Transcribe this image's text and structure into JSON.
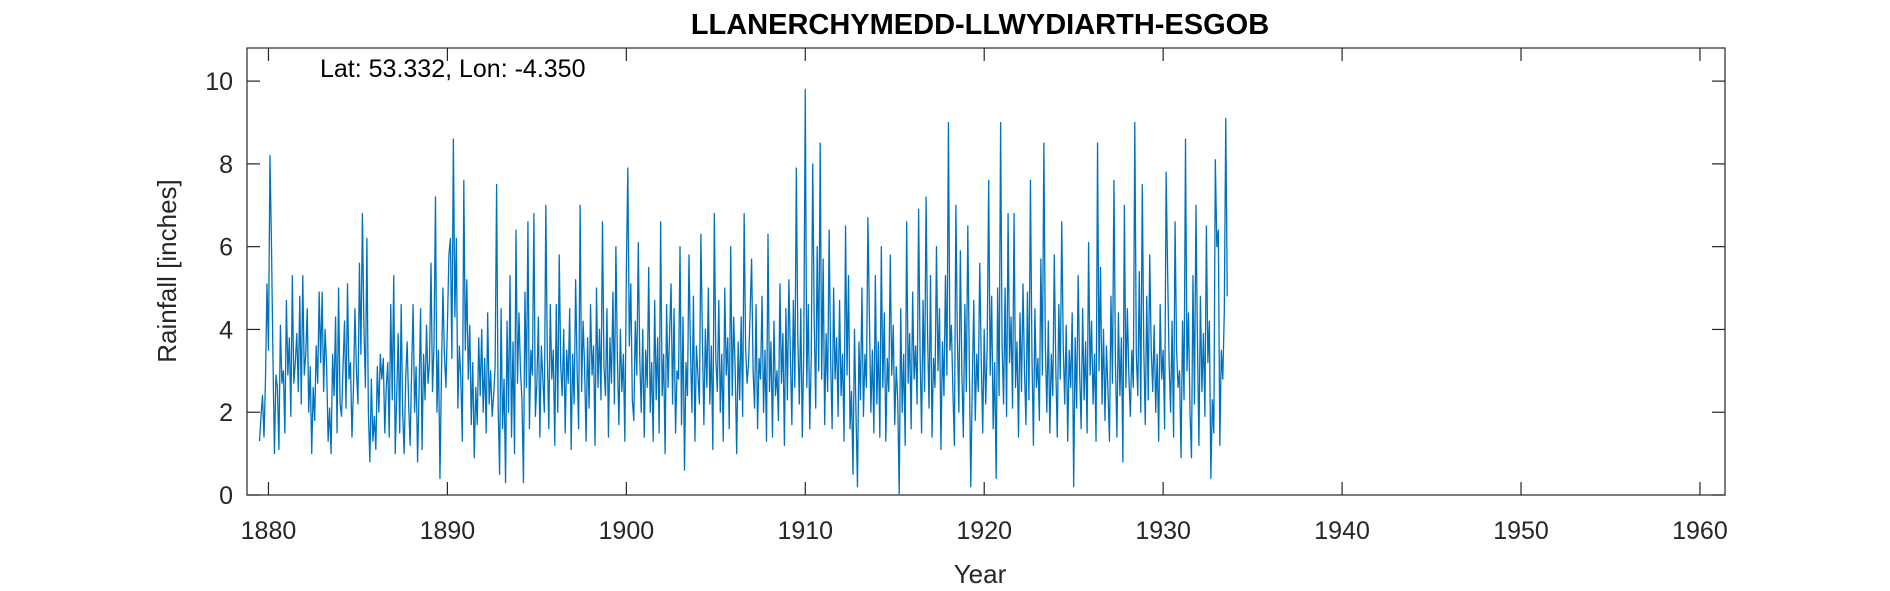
{
  "chart_data": {
    "type": "line",
    "title": "LLANERCHYMEDD-LLWYDIARTH-ESGOB",
    "annotation": "Lat: 53.332, Lon: -4.350",
    "xlabel": "Year",
    "ylabel": "Rainfall [inches]",
    "xlim": [
      1878.8,
      1961.4
    ],
    "ylim": [
      0,
      10.8
    ],
    "x_ticks": [
      1880,
      1890,
      1900,
      1910,
      1920,
      1930,
      1940,
      1950,
      1960
    ],
    "y_ticks": [
      0,
      2,
      4,
      6,
      8,
      10
    ],
    "line_color": "#0072BD",
    "x_start": 1879.5,
    "step": 0.0833333,
    "series": [
      {
        "values": [
          1.3,
          1.9,
          2.4,
          1.4,
          2.8,
          5.1,
          3.5,
          8.2,
          6.1,
          3.3,
          1.0,
          2.9,
          2.6,
          1.1,
          4.1,
          2.7,
          3.0,
          1.5,
          4.7,
          2.9,
          3.8,
          1.9,
          5.3,
          2.7,
          3.2,
          3.9,
          2.5,
          4.8,
          2.2,
          5.3,
          2.9,
          3.4,
          4.5,
          2.0,
          3.1,
          1.0,
          2.6,
          1.8,
          3.6,
          2.7,
          4.9,
          3.2,
          4.9,
          2.5,
          4.0,
          3.1,
          1.3,
          2.1,
          1.0,
          3.4,
          2.4,
          4.3,
          1.5,
          5.0,
          2.2,
          1.9,
          3.1,
          4.2,
          2.1,
          5.1,
          2.8,
          3.2,
          1.4,
          2.6,
          4.5,
          3.0,
          2.2,
          5.6,
          3.4,
          6.8,
          4.1,
          2.6,
          6.2,
          2.0,
          0.8,
          2.8,
          1.3,
          1.9,
          1.1,
          3.1,
          2.0,
          3.4,
          2.8,
          3.3,
          1.5,
          2.6,
          3.2,
          1.4,
          4.6,
          2.3,
          5.3,
          1.0,
          2.4,
          3.9,
          1.5,
          4.6,
          2.0,
          1.0,
          2.8,
          3.7,
          2.2,
          1.2,
          3.0,
          4.6,
          2.0,
          3.1,
          0.8,
          2.5,
          4.5,
          1.1,
          3.4,
          2.3,
          4.1,
          2.7,
          3.2,
          5.6,
          2.5,
          3.6,
          7.2,
          2.0,
          3.5,
          0.4,
          2.9,
          5.0,
          3.4,
          2.6,
          4.1,
          5.8,
          6.2,
          3.3,
          8.6,
          4.3,
          6.2,
          2.1,
          3.6,
          2.8,
          1.3,
          7.6,
          3.5,
          5.2,
          2.8,
          4.1,
          1.7,
          3.2,
          0.9,
          2.6,
          1.7,
          3.8,
          2.4,
          4.0,
          2.0,
          3.3,
          1.5,
          4.4,
          2.2,
          3.0,
          1.9,
          2.4,
          3.1,
          7.5,
          2.2,
          0.5,
          4.5,
          1.6,
          2.8,
          0.3,
          4.2,
          2.0,
          5.3,
          1.4,
          3.7,
          1.0,
          6.4,
          2.7,
          4.4,
          3.0,
          2.3,
          0.3,
          4.9,
          2.6,
          6.6,
          1.6,
          3.5,
          2.9,
          6.8,
          1.9,
          2.7,
          4.3,
          1.4,
          3.6,
          2.8,
          2.0,
          7.0,
          3.4,
          1.6,
          4.6,
          2.8,
          3.5,
          1.2,
          4.6,
          2.0,
          5.8,
          3.1,
          2.4,
          4.0,
          1.5,
          3.5,
          2.7,
          4.5,
          1.1,
          3.4,
          2.2,
          5.2,
          3.0,
          1.6,
          7.0,
          2.5,
          4.2,
          3.1,
          1.3,
          3.8,
          2.1,
          4.6,
          2.9,
          3.6,
          1.2,
          5.0,
          2.6,
          4.0,
          2.3,
          6.6,
          3.1,
          2.4,
          4.5,
          1.4,
          3.8,
          2.7,
          4.9,
          2.2,
          6.0,
          3.3,
          1.7,
          4.0,
          2.5,
          3.4,
          1.3,
          5.4,
          7.9,
          3.6,
          5.1,
          2.3,
          1.8,
          4.2,
          2.9,
          6.1,
          3.3,
          2.0,
          4.0,
          1.4,
          3.5,
          2.6,
          5.5,
          2.0,
          3.2,
          1.3,
          4.7,
          2.3,
          3.8,
          1.5,
          6.6,
          2.4,
          3.4,
          1.0,
          4.6,
          2.6,
          3.9,
          5.1,
          2.2,
          4.5,
          1.5,
          3.0,
          2.8,
          6.0,
          1.7,
          4.3,
          0.6,
          3.2,
          2.4,
          5.8,
          3.5,
          2.0,
          4.8,
          1.3,
          3.6,
          2.9,
          2.2,
          6.3,
          3.8,
          1.7,
          4.0,
          2.6,
          5.0,
          2.2,
          3.6,
          1.1,
          6.8,
          3.3,
          2.5,
          4.7,
          2.0,
          3.4,
          1.3,
          5.0,
          2.9,
          3.8,
          1.6,
          6.0,
          2.4,
          4.3,
          3.0,
          1.0,
          3.7,
          2.3,
          4.3,
          1.9,
          6.8,
          3.5,
          2.7,
          3.2,
          4.4,
          5.7,
          3.0,
          2.1,
          4.6,
          1.6,
          3.3,
          2.8,
          4.8,
          2.0,
          3.5,
          1.3,
          6.3,
          2.5,
          3.7,
          1.4,
          4.2,
          2.4,
          3.0,
          1.8,
          5.1,
          2.7,
          3.9,
          1.2,
          4.5,
          2.3,
          5.2,
          3.4,
          1.7,
          4.7,
          2.6,
          7.9,
          3.8,
          2.2,
          4.5,
          1.4,
          3.5,
          9.8,
          2.6,
          4.6,
          1.6,
          3.3,
          8.0,
          4.2,
          2.1,
          6.0,
          3.0,
          8.5,
          2.8,
          5.7,
          1.7,
          3.9,
          2.5,
          6.4,
          3.3,
          1.6,
          5.0,
          2.8,
          3.8,
          1.9,
          4.7,
          2.4,
          3.4,
          1.3,
          6.5,
          2.9,
          5.3,
          1.6,
          2.5,
          0.5,
          4.0,
          2.0,
          0.2,
          3.7,
          2.3,
          5.0,
          1.9,
          3.4,
          2.6,
          6.7,
          4.3,
          2.0,
          3.5,
          1.5,
          5.3,
          2.2,
          3.7,
          1.4,
          6.0,
          2.6,
          4.4,
          1.3,
          3.3,
          2.5,
          5.8,
          2.9,
          4.1,
          1.7,
          3.1,
          2.3,
          0.0,
          4.5,
          2.0,
          3.4,
          1.2,
          6.6,
          2.7,
          3.9,
          1.6,
          4.9,
          2.8,
          3.6,
          2.2,
          6.9,
          3.4,
          1.5,
          4.7,
          2.5,
          7.2,
          3.9,
          2.1,
          5.3,
          1.4,
          3.3,
          2.6,
          6.0,
          3.0,
          4.5,
          1.1,
          3.7,
          2.4,
          5.3,
          2.9,
          9.0,
          3.5,
          4.1,
          2.5,
          1.2,
          7.0,
          3.8,
          2.0,
          5.9,
          3.0,
          1.4,
          4.6,
          2.5,
          6.5,
          3.2,
          0.2,
          2.7,
          4.7,
          1.8,
          3.4,
          2.5,
          5.6,
          3.3,
          1.5,
          4.0,
          2.2,
          3.6,
          7.6,
          2.9,
          4.8,
          1.6,
          3.2,
          0.4,
          5.0,
          2.4,
          9.0,
          3.6,
          2.2,
          5.0,
          1.9,
          6.8,
          3.2,
          4.3,
          2.1,
          6.8,
          2.6,
          3.7,
          1.4,
          4.4,
          2.5,
          5.1,
          3.0,
          1.7,
          4.9,
          2.3,
          7.6,
          3.4,
          1.2,
          4.5,
          2.6,
          3.3,
          1.8,
          5.7,
          2.9,
          8.5,
          3.6,
          2.0,
          4.2,
          1.5,
          3.4,
          2.4,
          5.8,
          3.1,
          1.4,
          4.6,
          2.8,
          6.6,
          3.6,
          2.2,
          4.1,
          1.3,
          3.5,
          2.6,
          4.4,
          0.2,
          3.8,
          2.1,
          5.3,
          3.0,
          1.6,
          4.5,
          2.3,
          3.7,
          1.5,
          6.1,
          2.9,
          4.2,
          2.2,
          3.4,
          1.3,
          8.5,
          3.0,
          5.5,
          2.2,
          4.0,
          1.8,
          3.6,
          2.5,
          1.3,
          4.8,
          2.7,
          7.6,
          3.2,
          1.4,
          4.4,
          2.4,
          3.8,
          0.8,
          7.0,
          2.6,
          4.5,
          2.9,
          1.9,
          3.5,
          2.6,
          9.0,
          3.4,
          2.4,
          5.4,
          2.0,
          7.5,
          3.6,
          1.7,
          4.8,
          2.3,
          5.8,
          3.5,
          2.5,
          4.1,
          2.0,
          3.4,
          1.3,
          4.6,
          2.8,
          3.5,
          1.6,
          7.8,
          5.4,
          3.2,
          2.0,
          4.2,
          1.4,
          6.6,
          3.5,
          2.6,
          3.0,
          0.9,
          4.2,
          2.3,
          8.6,
          3.0,
          4.4,
          2.0,
          0.9,
          5.3,
          2.2,
          7.0,
          3.7,
          1.2,
          4.8,
          2.5,
          3.9,
          1.9,
          6.5,
          3.2,
          4.2,
          0.4,
          2.3,
          1.5,
          8.1,
          6.0,
          6.4,
          1.2,
          3.5,
          2.8,
          4.4,
          9.1,
          4.8
        ]
      }
    ]
  }
}
